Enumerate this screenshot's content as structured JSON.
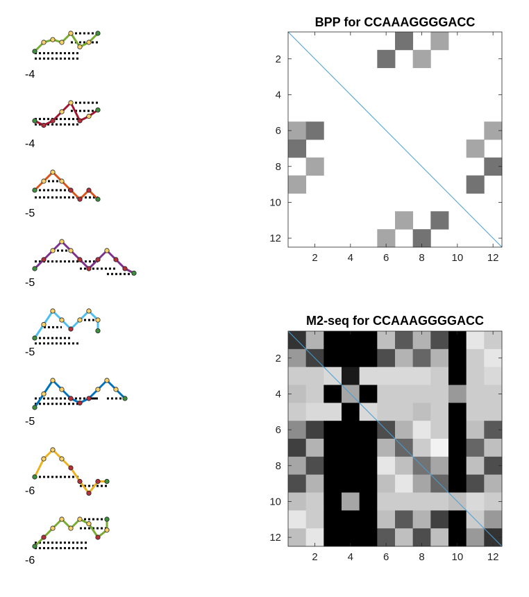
{
  "chart_data": [
    {
      "type": "heatmap",
      "title": "BPP for CCAAAGGGGACC",
      "xlabel": "",
      "ylabel": "",
      "size": 12,
      "x_ticks": [
        2,
        4,
        6,
        8,
        10,
        12
      ],
      "y_ticks": [
        2,
        4,
        6,
        8,
        10,
        12
      ],
      "y_reversed": true,
      "grid": false,
      "colormap": "gray-reversed",
      "diagonal_color": "#4a9ed1",
      "values": [
        [
          0,
          0,
          0,
          0,
          0,
          0,
          0,
          0,
          0,
          0,
          0,
          0
        ],
        [
          0,
          0,
          0,
          0,
          0,
          0,
          0,
          0,
          0,
          0,
          0,
          0
        ],
        [
          0,
          0,
          0,
          0,
          0,
          0,
          0,
          0,
          0,
          0,
          0,
          0
        ],
        [
          0,
          0,
          0,
          0,
          0,
          0,
          0,
          0,
          0,
          0,
          0,
          0
        ],
        [
          0,
          0,
          0,
          0,
          0,
          0,
          0,
          0,
          0,
          0,
          0,
          0
        ],
        [
          0,
          0,
          0,
          0,
          0,
          0,
          0,
          0,
          0,
          0,
          0,
          0
        ],
        [
          0,
          0,
          0,
          0,
          0,
          0,
          0,
          0,
          0,
          0,
          0,
          0
        ],
        [
          0,
          0,
          0,
          0,
          0,
          0,
          0,
          0,
          0,
          0,
          0,
          0
        ],
        [
          0,
          0,
          0,
          0,
          0,
          0,
          0,
          0,
          0,
          0,
          0,
          0
        ],
        [
          0,
          0,
          0,
          0,
          0,
          0,
          0,
          0,
          0,
          0,
          0,
          0
        ],
        [
          0,
          0,
          0,
          0,
          0,
          0,
          0,
          0,
          0,
          0,
          0,
          0
        ],
        [
          0,
          0,
          0,
          0,
          0,
          0,
          0,
          0,
          0,
          0,
          0,
          0
        ]
      ],
      "cells": [
        {
          "row": 1,
          "col": 7,
          "value": 0.55
        },
        {
          "row": 1,
          "col": 9,
          "value": 0.35
        },
        {
          "row": 2,
          "col": 6,
          "value": 0.55
        },
        {
          "row": 2,
          "col": 8,
          "value": 0.35
        },
        {
          "row": 6,
          "col": 1,
          "value": 0.35
        },
        {
          "row": 6,
          "col": 2,
          "value": 0.55
        },
        {
          "row": 6,
          "col": 12,
          "value": 0.35
        },
        {
          "row": 7,
          "col": 1,
          "value": 0.55
        },
        {
          "row": 7,
          "col": 11,
          "value": 0.35
        },
        {
          "row": 8,
          "col": 2,
          "value": 0.35
        },
        {
          "row": 8,
          "col": 12,
          "value": 0.55
        },
        {
          "row": 9,
          "col": 1,
          "value": 0.35
        },
        {
          "row": 9,
          "col": 11,
          "value": 0.55
        },
        {
          "row": 11,
          "col": 7,
          "value": 0.35
        },
        {
          "row": 11,
          "col": 9,
          "value": 0.55
        },
        {
          "row": 12,
          "col": 6,
          "value": 0.35
        },
        {
          "row": 12,
          "col": 8,
          "value": 0.55
        }
      ]
    },
    {
      "type": "heatmap",
      "title": "M2-seq for CCAAAGGGGACC",
      "xlabel": "",
      "ylabel": "",
      "size": 12,
      "x_ticks": [
        2,
        4,
        6,
        8,
        10,
        12
      ],
      "y_ticks": [
        2,
        4,
        6,
        8,
        10,
        12
      ],
      "y_reversed": true,
      "grid": false,
      "colormap": "gray",
      "diagonal_color": "#4a9ed1",
      "values": [
        [
          0.2,
          0.7,
          0.0,
          0.0,
          0.0,
          0.75,
          0.35,
          0.7,
          0.3,
          0.0,
          0.9,
          0.8
        ],
        [
          0.6,
          0.25,
          0.0,
          0.0,
          0.0,
          0.3,
          0.7,
          0.4,
          0.7,
          0.0,
          0.8,
          0.9
        ],
        [
          0.8,
          0.8,
          0.85,
          0.1,
          0.85,
          0.85,
          0.85,
          0.85,
          0.8,
          0.0,
          0.8,
          0.85
        ],
        [
          0.75,
          0.8,
          0.0,
          0.65,
          0.0,
          0.8,
          0.8,
          0.8,
          0.8,
          0.6,
          0.8,
          0.8
        ],
        [
          0.8,
          0.85,
          0.85,
          0.0,
          0.85,
          0.8,
          0.8,
          0.75,
          0.8,
          0.0,
          0.8,
          0.8
        ],
        [
          0.55,
          0.25,
          0.0,
          0.0,
          0.0,
          0.3,
          0.7,
          0.9,
          0.8,
          0.0,
          0.75,
          0.35
        ],
        [
          0.25,
          0.7,
          0.0,
          0.0,
          0.0,
          0.7,
          0.4,
          0.8,
          0.95,
          0.0,
          0.4,
          0.75
        ],
        [
          0.65,
          0.3,
          0.0,
          0.0,
          0.0,
          0.9,
          0.75,
          0.45,
          0.65,
          0.0,
          0.75,
          0.3
        ],
        [
          0.3,
          0.7,
          0.0,
          0.0,
          0.0,
          0.75,
          0.9,
          0.65,
          0.4,
          0.0,
          0.3,
          0.7
        ],
        [
          0.75,
          0.8,
          0.0,
          0.65,
          0.0,
          0.8,
          0.8,
          0.8,
          0.8,
          0.75,
          0.85,
          0.8
        ],
        [
          0.9,
          0.8,
          0.0,
          0.0,
          0.0,
          0.75,
          0.35,
          0.7,
          0.25,
          0.0,
          0.8,
          0.6
        ],
        [
          0.75,
          0.9,
          0.0,
          0.0,
          0.0,
          0.35,
          0.75,
          0.3,
          0.75,
          0.0,
          0.6,
          0.2
        ]
      ]
    }
  ],
  "structures": [
    {
      "energy": "-4",
      "color": "#77ac30"
    },
    {
      "energy": "-4",
      "color": "#a2142f"
    },
    {
      "energy": "-5",
      "color": "#d95319"
    },
    {
      "energy": "-5",
      "color": "#7e2f8e"
    },
    {
      "energy": "-5",
      "color": "#4dbeee"
    },
    {
      "energy": "-5",
      "color": "#0072bd"
    },
    {
      "energy": "-6",
      "color": "#edb120"
    },
    {
      "energy": "-6",
      "color": "#77ac30"
    }
  ],
  "node_colors": {
    "paired_up": "#f7d26a",
    "paired_down": "#b5303a",
    "end": "#3e8f3e"
  }
}
